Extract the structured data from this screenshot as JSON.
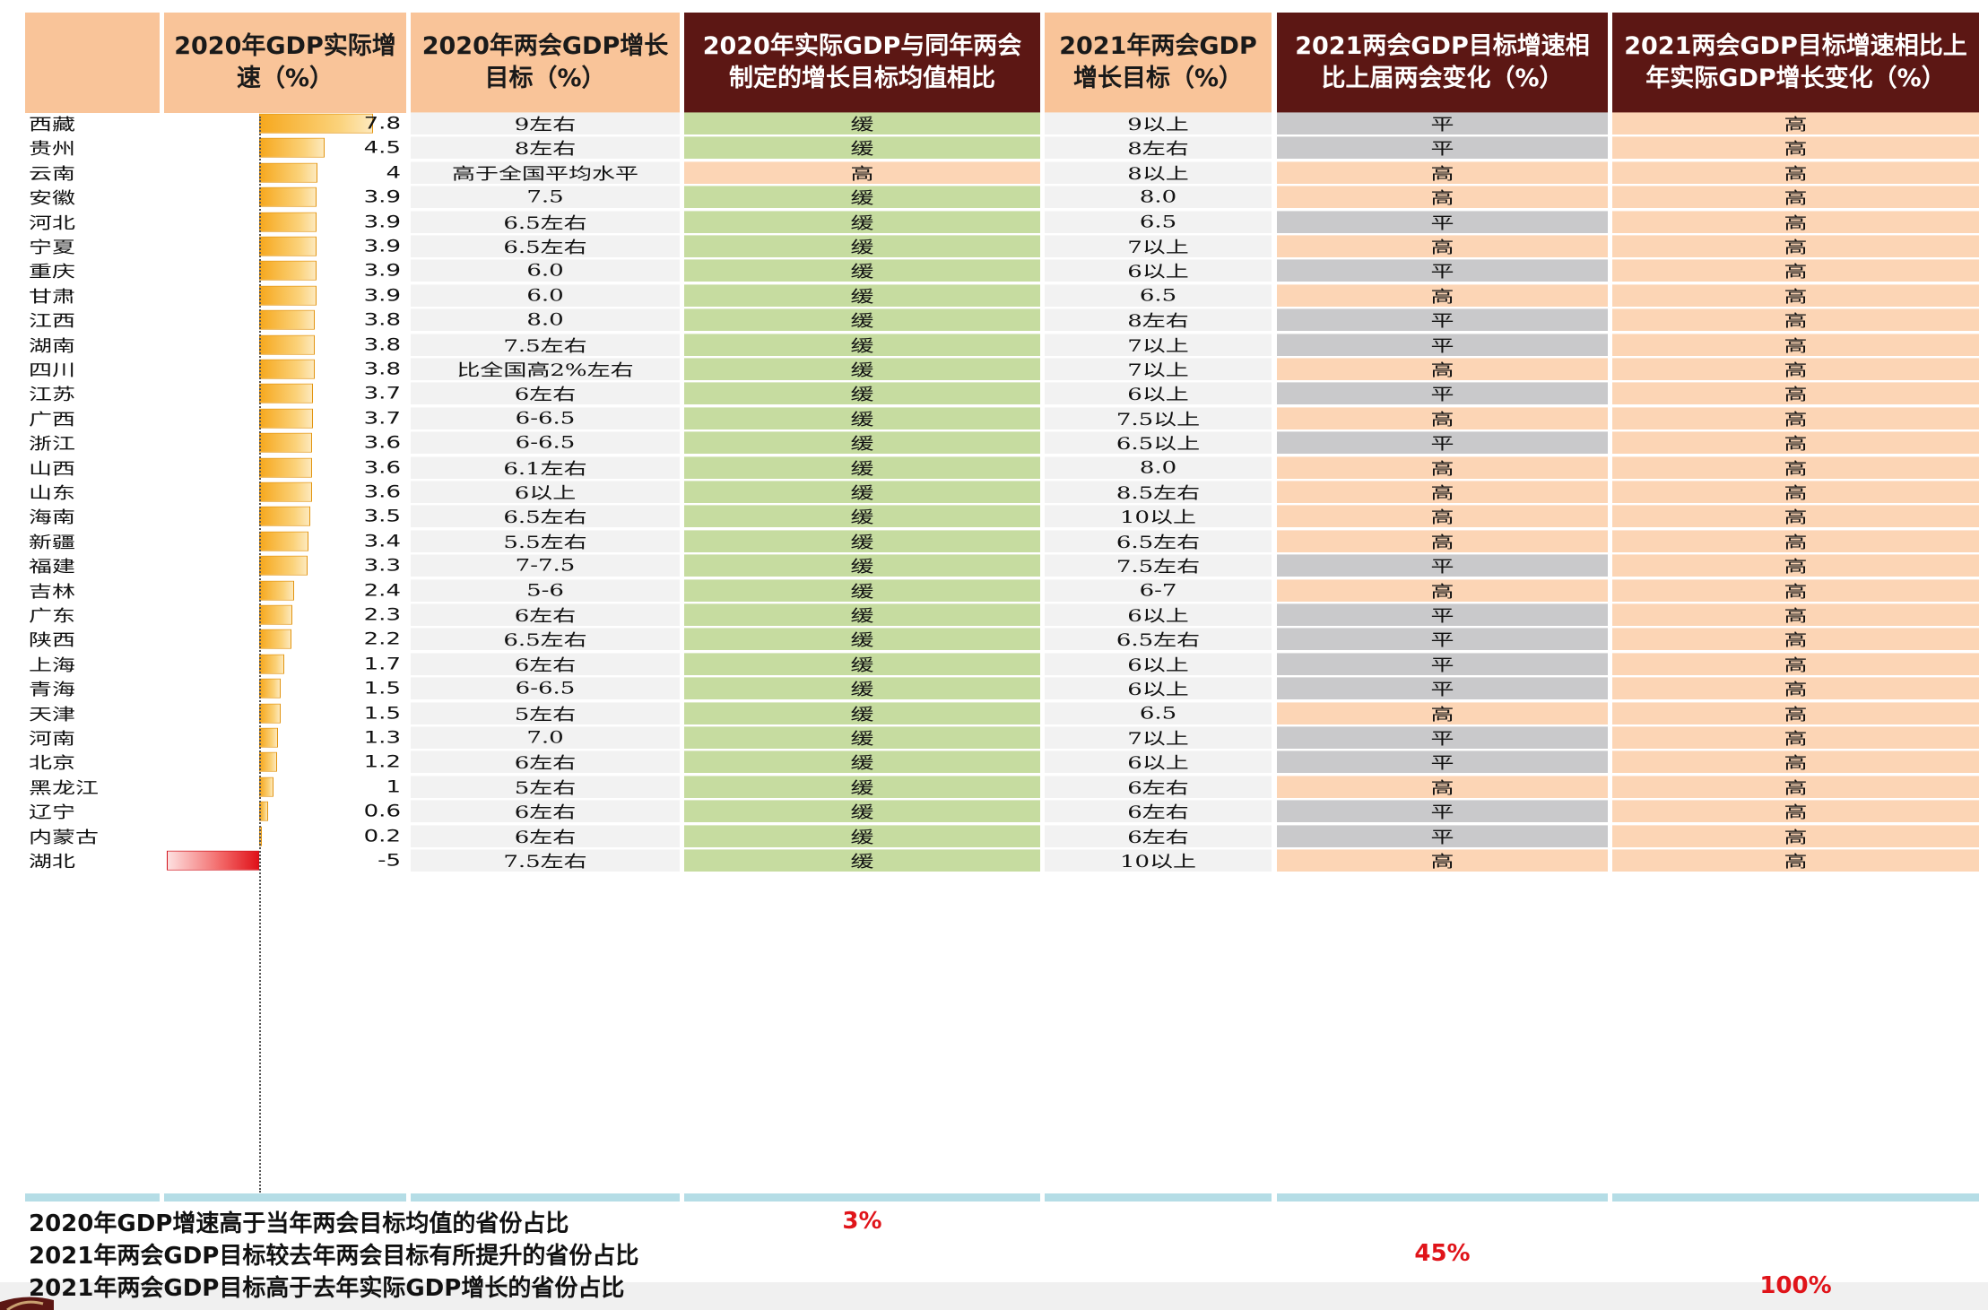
{
  "headers": {
    "growth": "2020年GDP实际增速（%）",
    "target2020": "2020年两会GDP增长目标（%）",
    "compare": "2020年实际GDP与同年两会制定的增长目标均值相比",
    "target2021": "2021年两会GDP增长目标（%）",
    "change": "2021两会GDP目标增速相比上届两会变化（%）",
    "vs_actual": "2021两会GDP目标增速相比上年实际GDP增长变化（%）"
  },
  "colors": {
    "header_orange": "#f9c499",
    "header_dark": "#5c1714",
    "green": "#c6dca0",
    "peach": "#fcd5b5",
    "grey": "#c9c9cb",
    "highlight_red": "#e0141a"
  },
  "bar_max": 7.8,
  "rows": [
    {
      "province": "西藏",
      "growth": 7.8,
      "growth_label": "7.8",
      "target2020": "9左右",
      "compare": "缓",
      "target2021": "9以上",
      "change": "平",
      "vs_actual": "高"
    },
    {
      "province": "贵州",
      "growth": 4.5,
      "growth_label": "4.5",
      "target2020": "8左右",
      "compare": "缓",
      "target2021": "8左右",
      "change": "平",
      "vs_actual": "高"
    },
    {
      "province": "云南",
      "growth": 4,
      "growth_label": "4",
      "target2020": "高于全国平均水平",
      "compare": "高",
      "target2021": "8以上",
      "change": "高",
      "vs_actual": "高"
    },
    {
      "province": "安徽",
      "growth": 3.9,
      "growth_label": "3.9",
      "target2020": "7.5",
      "compare": "缓",
      "target2021": "8.0",
      "change": "高",
      "vs_actual": "高"
    },
    {
      "province": "河北",
      "growth": 3.9,
      "growth_label": "3.9",
      "target2020": "6.5左右",
      "compare": "缓",
      "target2021": "6.5",
      "change": "平",
      "vs_actual": "高"
    },
    {
      "province": "宁夏",
      "growth": 3.9,
      "growth_label": "3.9",
      "target2020": "6.5左右",
      "compare": "缓",
      "target2021": "7以上",
      "change": "高",
      "vs_actual": "高"
    },
    {
      "province": "重庆",
      "growth": 3.9,
      "growth_label": "3.9",
      "target2020": "6.0",
      "compare": "缓",
      "target2021": "6以上",
      "change": "平",
      "vs_actual": "高"
    },
    {
      "province": "甘肃",
      "growth": 3.9,
      "growth_label": "3.9",
      "target2020": "6.0",
      "compare": "缓",
      "target2021": "6.5",
      "change": "高",
      "vs_actual": "高"
    },
    {
      "province": "江西",
      "growth": 3.8,
      "growth_label": "3.8",
      "target2020": "8.0",
      "compare": "缓",
      "target2021": "8左右",
      "change": "平",
      "vs_actual": "高"
    },
    {
      "province": "湖南",
      "growth": 3.8,
      "growth_label": "3.8",
      "target2020": "7.5左右",
      "compare": "缓",
      "target2021": "7以上",
      "change": "平",
      "vs_actual": "高"
    },
    {
      "province": "四川",
      "growth": 3.8,
      "growth_label": "3.8",
      "target2020": "比全国高2%左右",
      "compare": "缓",
      "target2021": "7以上",
      "change": "高",
      "vs_actual": "高"
    },
    {
      "province": "江苏",
      "growth": 3.7,
      "growth_label": "3.7",
      "target2020": "6左右",
      "compare": "缓",
      "target2021": "6以上",
      "change": "平",
      "vs_actual": "高"
    },
    {
      "province": "广西",
      "growth": 3.7,
      "growth_label": "3.7",
      "target2020": "6-6.5",
      "compare": "缓",
      "target2021": "7.5以上",
      "change": "高",
      "vs_actual": "高"
    },
    {
      "province": "浙江",
      "growth": 3.6,
      "growth_label": "3.6",
      "target2020": "6-6.5",
      "compare": "缓",
      "target2021": "6.5以上",
      "change": "平",
      "vs_actual": "高"
    },
    {
      "province": "山西",
      "growth": 3.6,
      "growth_label": "3.6",
      "target2020": "6.1左右",
      "compare": "缓",
      "target2021": "8.0",
      "change": "高",
      "vs_actual": "高"
    },
    {
      "province": "山东",
      "growth": 3.6,
      "growth_label": "3.6",
      "target2020": "6以上",
      "compare": "缓",
      "target2021": "8.5左右",
      "change": "高",
      "vs_actual": "高"
    },
    {
      "province": "海南",
      "growth": 3.5,
      "growth_label": "3.5",
      "target2020": "6.5左右",
      "compare": "缓",
      "target2021": "10以上",
      "change": "高",
      "vs_actual": "高"
    },
    {
      "province": "新疆",
      "growth": 3.4,
      "growth_label": "3.4",
      "target2020": "5.5左右",
      "compare": "缓",
      "target2021": "6.5左右",
      "change": "高",
      "vs_actual": "高"
    },
    {
      "province": "福建",
      "growth": 3.3,
      "growth_label": "3.3",
      "target2020": "7-7.5",
      "compare": "缓",
      "target2021": "7.5左右",
      "change": "平",
      "vs_actual": "高"
    },
    {
      "province": "吉林",
      "growth": 2.4,
      "growth_label": "2.4",
      "target2020": "5-6",
      "compare": "缓",
      "target2021": "6-7",
      "change": "高",
      "vs_actual": "高"
    },
    {
      "province": "广东",
      "growth": 2.3,
      "growth_label": "2.3",
      "target2020": "6左右",
      "compare": "缓",
      "target2021": "6以上",
      "change": "平",
      "vs_actual": "高"
    },
    {
      "province": "陕西",
      "growth": 2.2,
      "growth_label": "2.2",
      "target2020": "6.5左右",
      "compare": "缓",
      "target2021": "6.5左右",
      "change": "平",
      "vs_actual": "高"
    },
    {
      "province": "上海",
      "growth": 1.7,
      "growth_label": "1.7",
      "target2020": "6左右",
      "compare": "缓",
      "target2021": "6以上",
      "change": "平",
      "vs_actual": "高"
    },
    {
      "province": "青海",
      "growth": 1.5,
      "growth_label": "1.5",
      "target2020": "6-6.5",
      "compare": "缓",
      "target2021": "6以上",
      "change": "平",
      "vs_actual": "高"
    },
    {
      "province": "天津",
      "growth": 1.5,
      "growth_label": "1.5",
      "target2020": "5左右",
      "compare": "缓",
      "target2021": "6.5",
      "change": "高",
      "vs_actual": "高"
    },
    {
      "province": "河南",
      "growth": 1.3,
      "growth_label": "1.3",
      "target2020": "7.0",
      "compare": "缓",
      "target2021": "7以上",
      "change": "平",
      "vs_actual": "高"
    },
    {
      "province": "北京",
      "growth": 1.2,
      "growth_label": "1.2",
      "target2020": "6左右",
      "compare": "缓",
      "target2021": "6以上",
      "change": "平",
      "vs_actual": "高"
    },
    {
      "province": "黑龙江",
      "growth": 1,
      "growth_label": "1",
      "target2020": "5左右",
      "compare": "缓",
      "target2021": "6左右",
      "change": "高",
      "vs_actual": "高"
    },
    {
      "province": "辽宁",
      "growth": 0.6,
      "growth_label": "0.6",
      "target2020": "6左右",
      "compare": "缓",
      "target2021": "6左右",
      "change": "平",
      "vs_actual": "高"
    },
    {
      "province": "内蒙古",
      "growth": 0.2,
      "growth_label": "0.2",
      "target2020": "6左右",
      "compare": "缓",
      "target2021": "6左右",
      "change": "平",
      "vs_actual": "高"
    },
    {
      "province": "湖北",
      "growth": -5,
      "growth_label": "-5",
      "target2020": "7.5左右",
      "compare": "缓",
      "target2021": "10以上",
      "change": "高",
      "vs_actual": "高"
    }
  ],
  "footer": [
    {
      "label": "2020年GDP增速高于当年两会目标均值的省份占比",
      "value": "3%",
      "column": "compare"
    },
    {
      "label": "2021年两会GDP目标较去年两会目标有所提升的省份占比",
      "value": "45%",
      "column": "change"
    },
    {
      "label": "2021年两会GDP目标高于去年实际GDP增长的省份占比",
      "value": "100%",
      "column": "vs_actual"
    }
  ]
}
